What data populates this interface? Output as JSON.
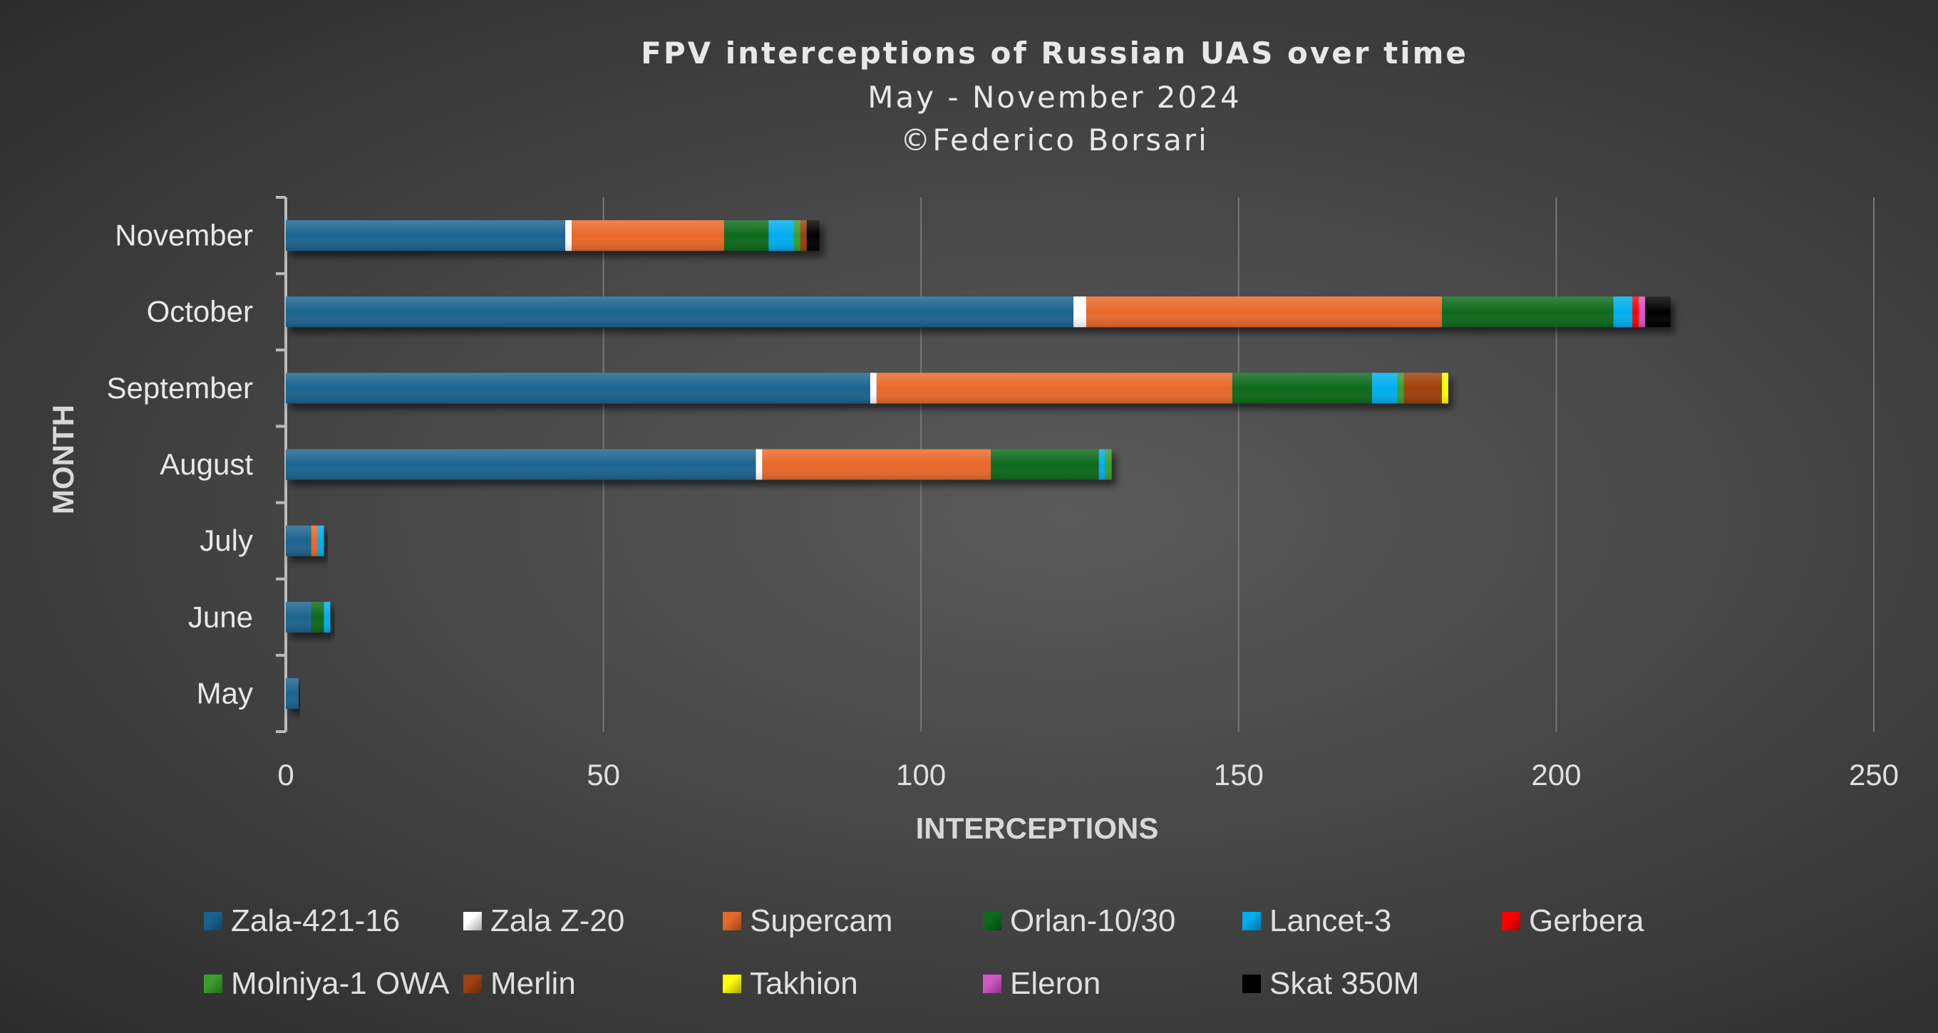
{
  "chart_data": {
    "type": "bar",
    "orientation": "horizontal",
    "stacked": true,
    "title": "FPV interceptions of Russian UAS over time",
    "subtitle": "May - November 2024",
    "credit": "©Federico Borsari",
    "xlabel": "INTERCEPTIONS",
    "ylabel": "MONTH",
    "xlim": [
      0,
      250
    ],
    "xticks": [
      0,
      50,
      100,
      150,
      200,
      250
    ],
    "grid": "vertical",
    "legend_position": "bottom",
    "categories": [
      "May",
      "June",
      "July",
      "August",
      "September",
      "October",
      "November"
    ],
    "series": [
      {
        "name": "Zala-421-16",
        "color": "#1a6390",
        "values": [
          2,
          4,
          4,
          74,
          92,
          124,
          44
        ]
      },
      {
        "name": "Zala Z-20",
        "color": "#ffffff",
        "values": [
          0,
          0,
          0,
          1,
          1,
          2,
          1
        ]
      },
      {
        "name": "Supercam",
        "color": "#e8692a",
        "values": [
          0,
          0,
          1,
          36,
          56,
          56,
          24
        ]
      },
      {
        "name": "Orlan-10/30",
        "color": "#0f6a1c",
        "values": [
          0,
          2,
          0,
          17,
          22,
          27,
          7
        ]
      },
      {
        "name": "Lancet-3",
        "color": "#00aeef",
        "values": [
          0,
          1,
          1,
          1,
          4,
          3,
          4
        ]
      },
      {
        "name": "Gerbera",
        "color": "#ff0000",
        "values": [
          0,
          0,
          0,
          0,
          0,
          1,
          0
        ]
      },
      {
        "name": "Molniya-1 OWA",
        "color": "#3aa02a",
        "values": [
          0,
          0,
          0,
          1,
          1,
          0,
          1
        ]
      },
      {
        "name": "Merlin",
        "color": "#a0400f",
        "values": [
          0,
          0,
          0,
          0,
          6,
          0,
          1
        ]
      },
      {
        "name": "Takhion",
        "color": "#ffff00",
        "values": [
          0,
          0,
          0,
          0,
          1,
          0,
          0
        ]
      },
      {
        "name": "Eleron",
        "color": "#d257c8",
        "values": [
          0,
          0,
          0,
          0,
          0,
          1,
          0
        ]
      },
      {
        "name": "Skat 350M",
        "color": "#000000",
        "values": [
          0,
          0,
          0,
          0,
          0,
          0,
          0
        ]
      }
    ]
  }
}
